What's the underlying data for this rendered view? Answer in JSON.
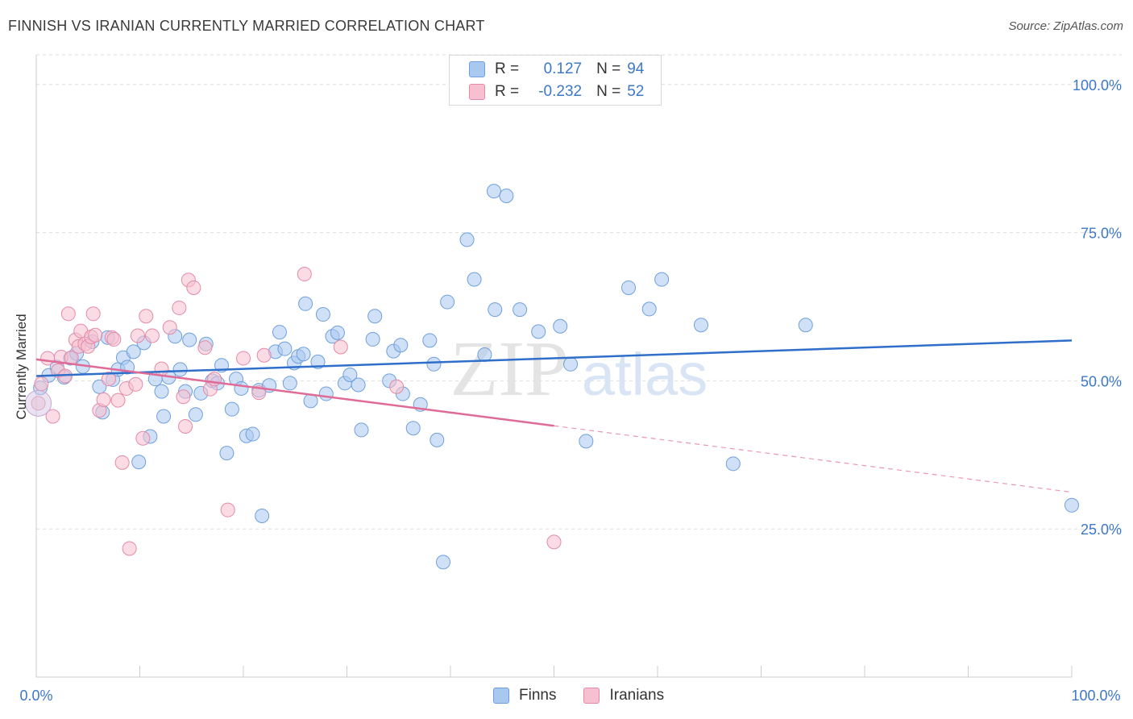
{
  "title": "FINNISH VS IRANIAN CURRENTLY MARRIED CORRELATION CHART",
  "source": "Source: ZipAtlas.com",
  "watermark": {
    "zip": "ZIP",
    "atlas": "atlas"
  },
  "legend": {
    "rows": [
      {
        "label": "R =",
        "r": "0.127",
        "n_label": "N =",
        "n": "94",
        "color": "#a9c8f0",
        "border": "#6f9fdc"
      },
      {
        "label": "R =",
        "r": "-0.232",
        "n_label": "N =",
        "n": "52",
        "color": "#f7c0d0",
        "border": "#e48aa8"
      }
    ]
  },
  "bottom_legend": [
    {
      "label": "Finns",
      "color": "#a9c8f0",
      "border": "#6f9fdc"
    },
    {
      "label": "Iranians",
      "color": "#f7c0d0",
      "border": "#e48aa8"
    }
  ],
  "chart_data": {
    "type": "scatter",
    "ylabel": "Currently Married",
    "xlabel": "",
    "xlim": [
      0,
      100
    ],
    "ylim": [
      0,
      105
    ],
    "x_tick_labels": [
      "0.0%",
      "100.0%"
    ],
    "y_ticks": [
      25,
      50,
      75,
      100
    ],
    "y_tick_labels": [
      "25.0%",
      "50.0%",
      "75.0%",
      "100.0%"
    ],
    "grid": true,
    "series": [
      {
        "name": "Finns",
        "color": "#6fa0dc",
        "fill": "#a9c8f0",
        "trend": {
          "x": [
            0,
            100
          ],
          "y": [
            50.8,
            56.8
          ],
          "color": "#2f6fca"
        },
        "points": [
          [
            0.4,
            48.8
          ],
          [
            1.2,
            50.9
          ],
          [
            2.0,
            52.3
          ],
          [
            2.7,
            50.6
          ],
          [
            3.3,
            53.8
          ],
          [
            3.9,
            54.6
          ],
          [
            4.5,
            52.4
          ],
          [
            5.4,
            56.6
          ],
          [
            6.1,
            49.0
          ],
          [
            6.4,
            44.7
          ],
          [
            6.9,
            57.3
          ],
          [
            7.4,
            50.2
          ],
          [
            7.9,
            51.9
          ],
          [
            8.4,
            53.9
          ],
          [
            8.8,
            52.3
          ],
          [
            9.4,
            54.9
          ],
          [
            9.9,
            36.3
          ],
          [
            10.4,
            56.4
          ],
          [
            11.0,
            40.6
          ],
          [
            11.5,
            50.3
          ],
          [
            12.1,
            48.2
          ],
          [
            12.3,
            44.0
          ],
          [
            12.8,
            50.6
          ],
          [
            13.4,
            57.5
          ],
          [
            13.9,
            51.9
          ],
          [
            14.4,
            48.2
          ],
          [
            14.8,
            56.9
          ],
          [
            15.4,
            44.3
          ],
          [
            15.9,
            47.9
          ],
          [
            16.4,
            56.2
          ],
          [
            17.0,
            50.0
          ],
          [
            17.5,
            49.6
          ],
          [
            17.9,
            52.6
          ],
          [
            18.4,
            37.8
          ],
          [
            18.9,
            45.2
          ],
          [
            19.3,
            50.3
          ],
          [
            19.8,
            48.7
          ],
          [
            20.3,
            40.7
          ],
          [
            20.9,
            41.0
          ],
          [
            21.5,
            48.4
          ],
          [
            21.8,
            27.2
          ],
          [
            22.5,
            49.2
          ],
          [
            23.1,
            54.9
          ],
          [
            23.5,
            58.2
          ],
          [
            24.0,
            55.4
          ],
          [
            24.5,
            49.6
          ],
          [
            24.9,
            53.0
          ],
          [
            25.3,
            54.1
          ],
          [
            25.8,
            54.5
          ],
          [
            26.0,
            63.0
          ],
          [
            26.5,
            46.6
          ],
          [
            27.2,
            53.2
          ],
          [
            27.7,
            61.2
          ],
          [
            28.0,
            47.8
          ],
          [
            28.6,
            57.5
          ],
          [
            29.1,
            58.1
          ],
          [
            29.8,
            49.6
          ],
          [
            30.3,
            51.0
          ],
          [
            31.1,
            49.3
          ],
          [
            31.4,
            41.7
          ],
          [
            32.5,
            57.0
          ],
          [
            32.7,
            60.9
          ],
          [
            34.1,
            50.0
          ],
          [
            34.5,
            55.0
          ],
          [
            35.2,
            56.0
          ],
          [
            35.4,
            47.8
          ],
          [
            36.4,
            42.0
          ],
          [
            37.1,
            46.0
          ],
          [
            38.0,
            56.8
          ],
          [
            38.4,
            52.8
          ],
          [
            38.7,
            40.0
          ],
          [
            39.3,
            19.4
          ],
          [
            39.7,
            63.3
          ],
          [
            41.6,
            73.8
          ],
          [
            42.3,
            67.1
          ],
          [
            43.3,
            54.4
          ],
          [
            44.3,
            62.0
          ],
          [
            44.2,
            82.0
          ],
          [
            45.4,
            81.2
          ],
          [
            46.7,
            62.0
          ],
          [
            48.5,
            58.3
          ],
          [
            50.6,
            59.2
          ],
          [
            51.6,
            52.8
          ],
          [
            53.1,
            39.8
          ],
          [
            57.2,
            65.7
          ],
          [
            59.2,
            62.1
          ],
          [
            60.4,
            67.1
          ],
          [
            64.2,
            59.4
          ],
          [
            67.3,
            36.0
          ],
          [
            74.3,
            59.4
          ],
          [
            100.0,
            29.0
          ]
        ]
      },
      {
        "name": "Iranians",
        "color": "#e48aa8",
        "fill": "#f7c0d0",
        "trend": {
          "x": [
            0,
            50
          ],
          "y": [
            53.6,
            42.4
          ],
          "color": "#e06b96"
        },
        "trend_dashed": {
          "x": [
            50,
            100
          ],
          "y": [
            42.4,
            31.2
          ]
        },
        "points": [
          [
            0.2,
            46.2
          ],
          [
            0.5,
            49.5
          ],
          [
            1.1,
            53.8
          ],
          [
            1.6,
            44.0
          ],
          [
            2.1,
            51.7
          ],
          [
            2.4,
            54.0
          ],
          [
            2.8,
            50.8
          ],
          [
            3.1,
            61.3
          ],
          [
            3.4,
            53.9
          ],
          [
            3.8,
            56.9
          ],
          [
            4.1,
            55.8
          ],
          [
            4.3,
            58.4
          ],
          [
            4.7,
            56.2
          ],
          [
            5.0,
            55.8
          ],
          [
            5.3,
            57.4
          ],
          [
            5.5,
            61.3
          ],
          [
            5.7,
            57.7
          ],
          [
            6.1,
            45.0
          ],
          [
            6.5,
            46.8
          ],
          [
            7.0,
            50.3
          ],
          [
            7.3,
            57.3
          ],
          [
            7.5,
            57.0
          ],
          [
            7.9,
            46.7
          ],
          [
            8.3,
            36.2
          ],
          [
            8.7,
            48.7
          ],
          [
            9.0,
            21.7
          ],
          [
            9.6,
            49.4
          ],
          [
            9.8,
            57.6
          ],
          [
            10.3,
            40.3
          ],
          [
            10.6,
            60.9
          ],
          [
            11.2,
            57.6
          ],
          [
            12.1,
            52.0
          ],
          [
            12.9,
            59.0
          ],
          [
            13.8,
            62.3
          ],
          [
            14.2,
            47.3
          ],
          [
            14.4,
            42.3
          ],
          [
            14.7,
            67.0
          ],
          [
            15.2,
            65.7
          ],
          [
            16.3,
            55.6
          ],
          [
            16.8,
            48.6
          ],
          [
            17.2,
            50.3
          ],
          [
            18.5,
            28.2
          ],
          [
            20.0,
            53.8
          ],
          [
            21.5,
            48.0
          ],
          [
            22.0,
            54.3
          ],
          [
            25.9,
            68.0
          ],
          [
            29.4,
            55.7
          ],
          [
            34.8,
            49.0
          ],
          [
            50.0,
            22.8
          ]
        ]
      }
    ]
  }
}
